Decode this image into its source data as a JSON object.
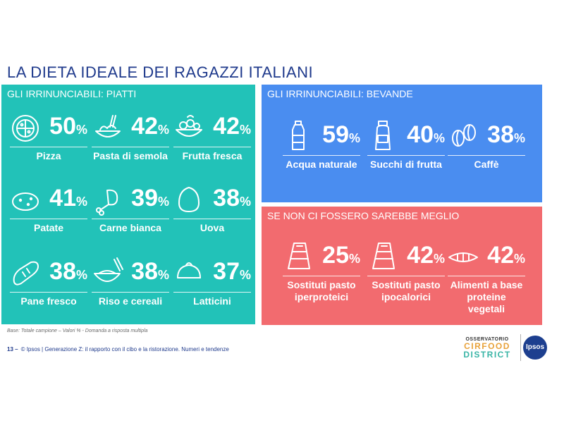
{
  "title": "LA DIETA IDEALE DEI RAGAZZI ITALIANI",
  "panels": {
    "piatti": {
      "heading": "GLI IRRINUNCIABILI: PIATTI",
      "color": "#22c2b8",
      "items": [
        {
          "icon": "pizza-icon",
          "value": "50",
          "unit": "%",
          "label": "Pizza"
        },
        {
          "icon": "pasta-icon",
          "value": "42",
          "unit": "%",
          "label": "Pasta di semola"
        },
        {
          "icon": "fruit-bowl-icon",
          "value": "42",
          "unit": "%",
          "label": "Frutta fresca"
        },
        {
          "icon": "potato-icon",
          "value": "41",
          "unit": "%",
          "label": "Patate"
        },
        {
          "icon": "chicken-leg-icon",
          "value": "39",
          "unit": "%",
          "label": "Carne bianca"
        },
        {
          "icon": "egg-icon",
          "value": "38",
          "unit": "%",
          "label": "Uova"
        },
        {
          "icon": "bread-icon",
          "value": "38",
          "unit": "%",
          "label": "Pane fresco"
        },
        {
          "icon": "rice-bowl-icon",
          "value": "38",
          "unit": "%",
          "label": "Riso e cereali"
        },
        {
          "icon": "cheese-icon",
          "value": "37",
          "unit": "%",
          "label": "Latticini"
        }
      ]
    },
    "bevande": {
      "heading": "GLI IRRINUNCIABILI: BEVANDE",
      "color": "#4a8df0",
      "items": [
        {
          "icon": "water-bottle-icon",
          "value": "59",
          "unit": "%",
          "label": "Acqua naturale"
        },
        {
          "icon": "juice-bottle-icon",
          "value": "40",
          "unit": "%",
          "label": "Succhi di frutta"
        },
        {
          "icon": "coffee-bean-icon",
          "value": "38",
          "unit": "%",
          "label": "Caffè"
        }
      ]
    },
    "meglio": {
      "heading": "SE NON CI FOSSERO SAREBBE MEGLIO",
      "color": "#f26b6f",
      "items": [
        {
          "icon": "protein-bar-icon",
          "value": "25",
          "unit": "%",
          "label": "Sostituti pasto iperproteici"
        },
        {
          "icon": "diet-bar-icon",
          "value": "42",
          "unit": "%",
          "label": "Sostituti pasto ipocalorici"
        },
        {
          "icon": "plant-food-icon",
          "value": "42",
          "unit": "%",
          "label": "Alimenti a base proteine vegetali"
        }
      ]
    }
  },
  "footnote": "Base: Totale campione – Valori % - Domanda a risposta multipla",
  "footer": {
    "page": "13 –",
    "text": "© Ipsos | Generazione Z: il rapporto con il cibo e la ristorazione. Numeri e tendenze"
  },
  "logos": {
    "osservatorio_line1": "OSSERVATORIO",
    "osservatorio_line2": "CIRFOOD",
    "osservatorio_line3": "DISTRICT",
    "ipsos": "Ipsos"
  }
}
